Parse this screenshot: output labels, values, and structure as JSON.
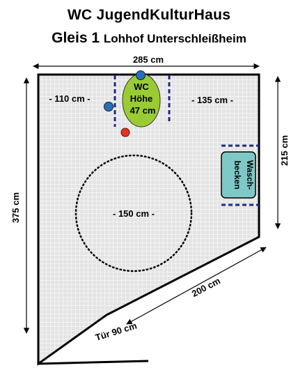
{
  "title": {
    "line1": "WC JugendKulturHaus",
    "line2_main": "Gleis 1",
    "line2_sub": "Lohhof Unterschleißheim"
  },
  "dimensions": {
    "top_width": "285 cm",
    "left_height": "375 cm",
    "right_height": "215 cm",
    "diagonal_wall": "200 cm",
    "door": "Tür 90 cm",
    "left_clearance": "- 110 cm -",
    "right_clearance": "- 135 cm -",
    "turning_circle": "- 150 cm -"
  },
  "fixtures": {
    "wc_line1": "WC",
    "wc_line2": "Höhe",
    "wc_line3": "47 cm",
    "sink_line1": "Wasch-",
    "sink_line2": "becken"
  },
  "colors": {
    "wc": "#99cc33",
    "sink": "#7fc8c8",
    "grab_bar": "#2a6fb8",
    "emergency_button": "#e8321e",
    "floor": "#e4e4e4",
    "tile_lines": "#ffffff",
    "dashed_markers": "#1e2a8c"
  }
}
